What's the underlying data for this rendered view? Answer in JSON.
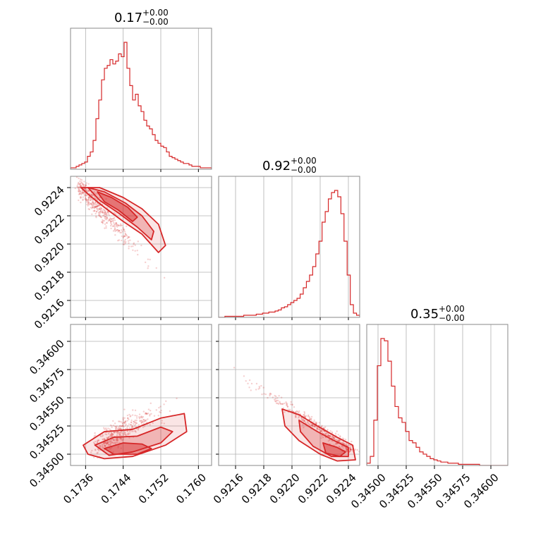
{
  "chart_data": {
    "type": "corner",
    "accent_color": "#d62728",
    "grid": true,
    "titles": [
      {
        "value": "0.17",
        "plus": "+0.00",
        "minus": "−0.00"
      },
      {
        "value": "0.92",
        "plus": "+0.00",
        "minus": "−0.00"
      },
      {
        "value": "0.35",
        "plus": "+0.00",
        "minus": "−0.00"
      }
    ],
    "params": [
      {
        "range": [
          0.17328,
          0.17628
        ],
        "ticks": [
          0.1736,
          0.1744,
          0.1752,
          0.176
        ],
        "tick_labels": [
          "0.1736",
          "0.1744",
          "0.1752",
          "0.1760"
        ]
      },
      {
        "range": [
          0.92148,
          0.92248
        ],
        "ticks": [
          0.9216,
          0.9218,
          0.922,
          0.9222,
          0.9224
        ],
        "tick_labels": [
          "0.9216",
          "0.9218",
          "0.9220",
          "0.9222",
          "0.9224"
        ]
      },
      {
        "range": [
          0.3449,
          0.34615
        ],
        "ticks": [
          0.345,
          0.34525,
          0.3455,
          0.34575,
          0.346
        ],
        "tick_labels": [
          "0.34500",
          "0.34525",
          "0.34550",
          "0.34575",
          "0.34600"
        ]
      }
    ],
    "histograms": [
      {
        "param": 0,
        "edges_start": 0.17328,
        "edges_end": 0.17628,
        "counts": [
          1,
          1,
          2,
          3,
          4,
          5,
          9,
          12,
          20,
          35,
          48,
          62,
          70,
          72,
          76,
          73,
          75,
          80,
          78,
          88,
          70,
          58,
          48,
          52,
          44,
          40,
          34,
          30,
          28,
          24,
          20,
          18,
          16,
          15,
          12,
          9,
          8,
          7,
          6,
          5,
          4,
          4,
          3,
          2,
          2,
          2,
          1,
          1,
          1,
          1
        ]
      },
      {
        "param": 1,
        "edges_start": 0.92148,
        "edges_end": 0.92248,
        "counts": [
          0,
          0,
          1,
          1,
          1,
          1,
          1,
          1,
          2,
          2,
          2,
          2,
          3,
          3,
          4,
          4,
          5,
          5,
          6,
          7,
          9,
          10,
          12,
          14,
          16,
          18,
          22,
          28,
          34,
          40,
          48,
          60,
          72,
          90,
          100,
          112,
          118,
          120,
          114,
          98,
          72,
          40,
          12,
          4,
          2
        ]
      },
      {
        "param": 2,
        "edges_start": 0.3449,
        "edges_end": 0.34615,
        "counts": [
          2,
          8,
          40,
          88,
          112,
          110,
          92,
          70,
          52,
          42,
          38,
          30,
          22,
          20,
          16,
          12,
          10,
          8,
          6,
          5,
          4,
          3,
          3,
          2,
          2,
          2,
          1,
          1,
          1,
          1,
          1,
          1,
          0,
          0,
          0,
          0,
          0,
          0,
          0,
          0
        ]
      }
    ],
    "pairs": [
      {
        "x_param": 0,
        "y_param": 1,
        "levels": [
          {
            "fill_opacity": 0.12,
            "points": [
              [
                0.1735,
                0.9224
              ],
              [
                0.1739,
                0.9224
              ],
              [
                0.1744,
                0.92233
              ],
              [
                0.1748,
                0.92225
              ],
              [
                0.17515,
                0.92214
              ],
              [
                0.1753,
                0.92199
              ],
              [
                0.17515,
                0.92194
              ],
              [
                0.1748,
                0.92207
              ],
              [
                0.1744,
                0.92216
              ],
              [
                0.174,
                0.92226
              ],
              [
                0.1737,
                0.92234
              ]
            ]
          },
          {
            "fill_opacity": 0.25,
            "points": [
              [
                0.17365,
                0.9224
              ],
              [
                0.174,
                0.92237
              ],
              [
                0.17445,
                0.92229
              ],
              [
                0.1748,
                0.9222
              ],
              [
                0.17505,
                0.92209
              ],
              [
                0.175,
                0.92203
              ],
              [
                0.1747,
                0.92212
              ],
              [
                0.1743,
                0.92222
              ],
              [
                0.1739,
                0.92231
              ]
            ]
          },
          {
            "fill_opacity": 0.45,
            "points": [
              [
                0.17385,
                0.92237
              ],
              [
                0.17415,
                0.92233
              ],
              [
                0.1745,
                0.92226
              ],
              [
                0.1747,
                0.92219
              ],
              [
                0.1746,
                0.92216
              ],
              [
                0.1743,
                0.92224
              ],
              [
                0.174,
                0.9223
              ]
            ]
          }
        ],
        "scatter": {
          "seed": 7,
          "n": 420,
          "mode": "diag01"
        }
      },
      {
        "x_param": 0,
        "y_param": 2,
        "levels": [
          {
            "fill_opacity": 0.12,
            "points": [
              [
                0.17355,
                0.34508
              ],
              [
                0.174,
                0.3452
              ],
              [
                0.1746,
                0.34522
              ],
              [
                0.1752,
                0.34532
              ],
              [
                0.1757,
                0.34536
              ],
              [
                0.17575,
                0.3452
              ],
              [
                0.1753,
                0.34508
              ],
              [
                0.1746,
                0.34498
              ],
              [
                0.174,
                0.34496
              ],
              [
                0.17365,
                0.345
              ]
            ]
          },
          {
            "fill_opacity": 0.25,
            "points": [
              [
                0.1738,
                0.34508
              ],
              [
                0.1742,
                0.34515
              ],
              [
                0.1747,
                0.34516
              ],
              [
                0.1752,
                0.34524
              ],
              [
                0.17545,
                0.3452
              ],
              [
                0.1752,
                0.3451
              ],
              [
                0.1746,
                0.34502
              ],
              [
                0.1741,
                0.34499
              ]
            ]
          },
          {
            "fill_opacity": 0.45,
            "points": [
              [
                0.174,
                0.34505
              ],
              [
                0.1744,
                0.3451
              ],
              [
                0.1748,
                0.34509
              ],
              [
                0.175,
                0.34505
              ],
              [
                0.1747,
                0.345
              ],
              [
                0.1742,
                0.345
              ]
            ]
          }
        ],
        "scatter": {
          "seed": 11,
          "n": 420,
          "mode": "diag02"
        }
      },
      {
        "x_param": 1,
        "y_param": 2,
        "levels": [
          {
            "fill_opacity": 0.12,
            "points": [
              [
                0.92193,
                0.3454
              ],
              [
                0.92205,
                0.34535
              ],
              [
                0.92218,
                0.34525
              ],
              [
                0.92232,
                0.34515
              ],
              [
                0.92243,
                0.34508
              ],
              [
                0.92245,
                0.34495
              ],
              [
                0.92232,
                0.34494
              ],
              [
                0.9222,
                0.345
              ],
              [
                0.92205,
                0.34512
              ],
              [
                0.92195,
                0.34525
              ]
            ]
          },
          {
            "fill_opacity": 0.25,
            "points": [
              [
                0.92205,
                0.3453
              ],
              [
                0.92218,
                0.3452
              ],
              [
                0.9223,
                0.34512
              ],
              [
                0.9224,
                0.34506
              ],
              [
                0.9224,
                0.34498
              ],
              [
                0.92228,
                0.34498
              ],
              [
                0.92215,
                0.34507
              ],
              [
                0.92206,
                0.3452
              ]
            ]
          },
          {
            "fill_opacity": 0.45,
            "points": [
              [
                0.92222,
                0.3451
              ],
              [
                0.92232,
                0.34506
              ],
              [
                0.92238,
                0.34502
              ],
              [
                0.92234,
                0.34498
              ],
              [
                0.92224,
                0.34501
              ]
            ]
          }
        ],
        "scatter": {
          "seed": 23,
          "n": 420,
          "mode": "diag12"
        }
      }
    ]
  }
}
